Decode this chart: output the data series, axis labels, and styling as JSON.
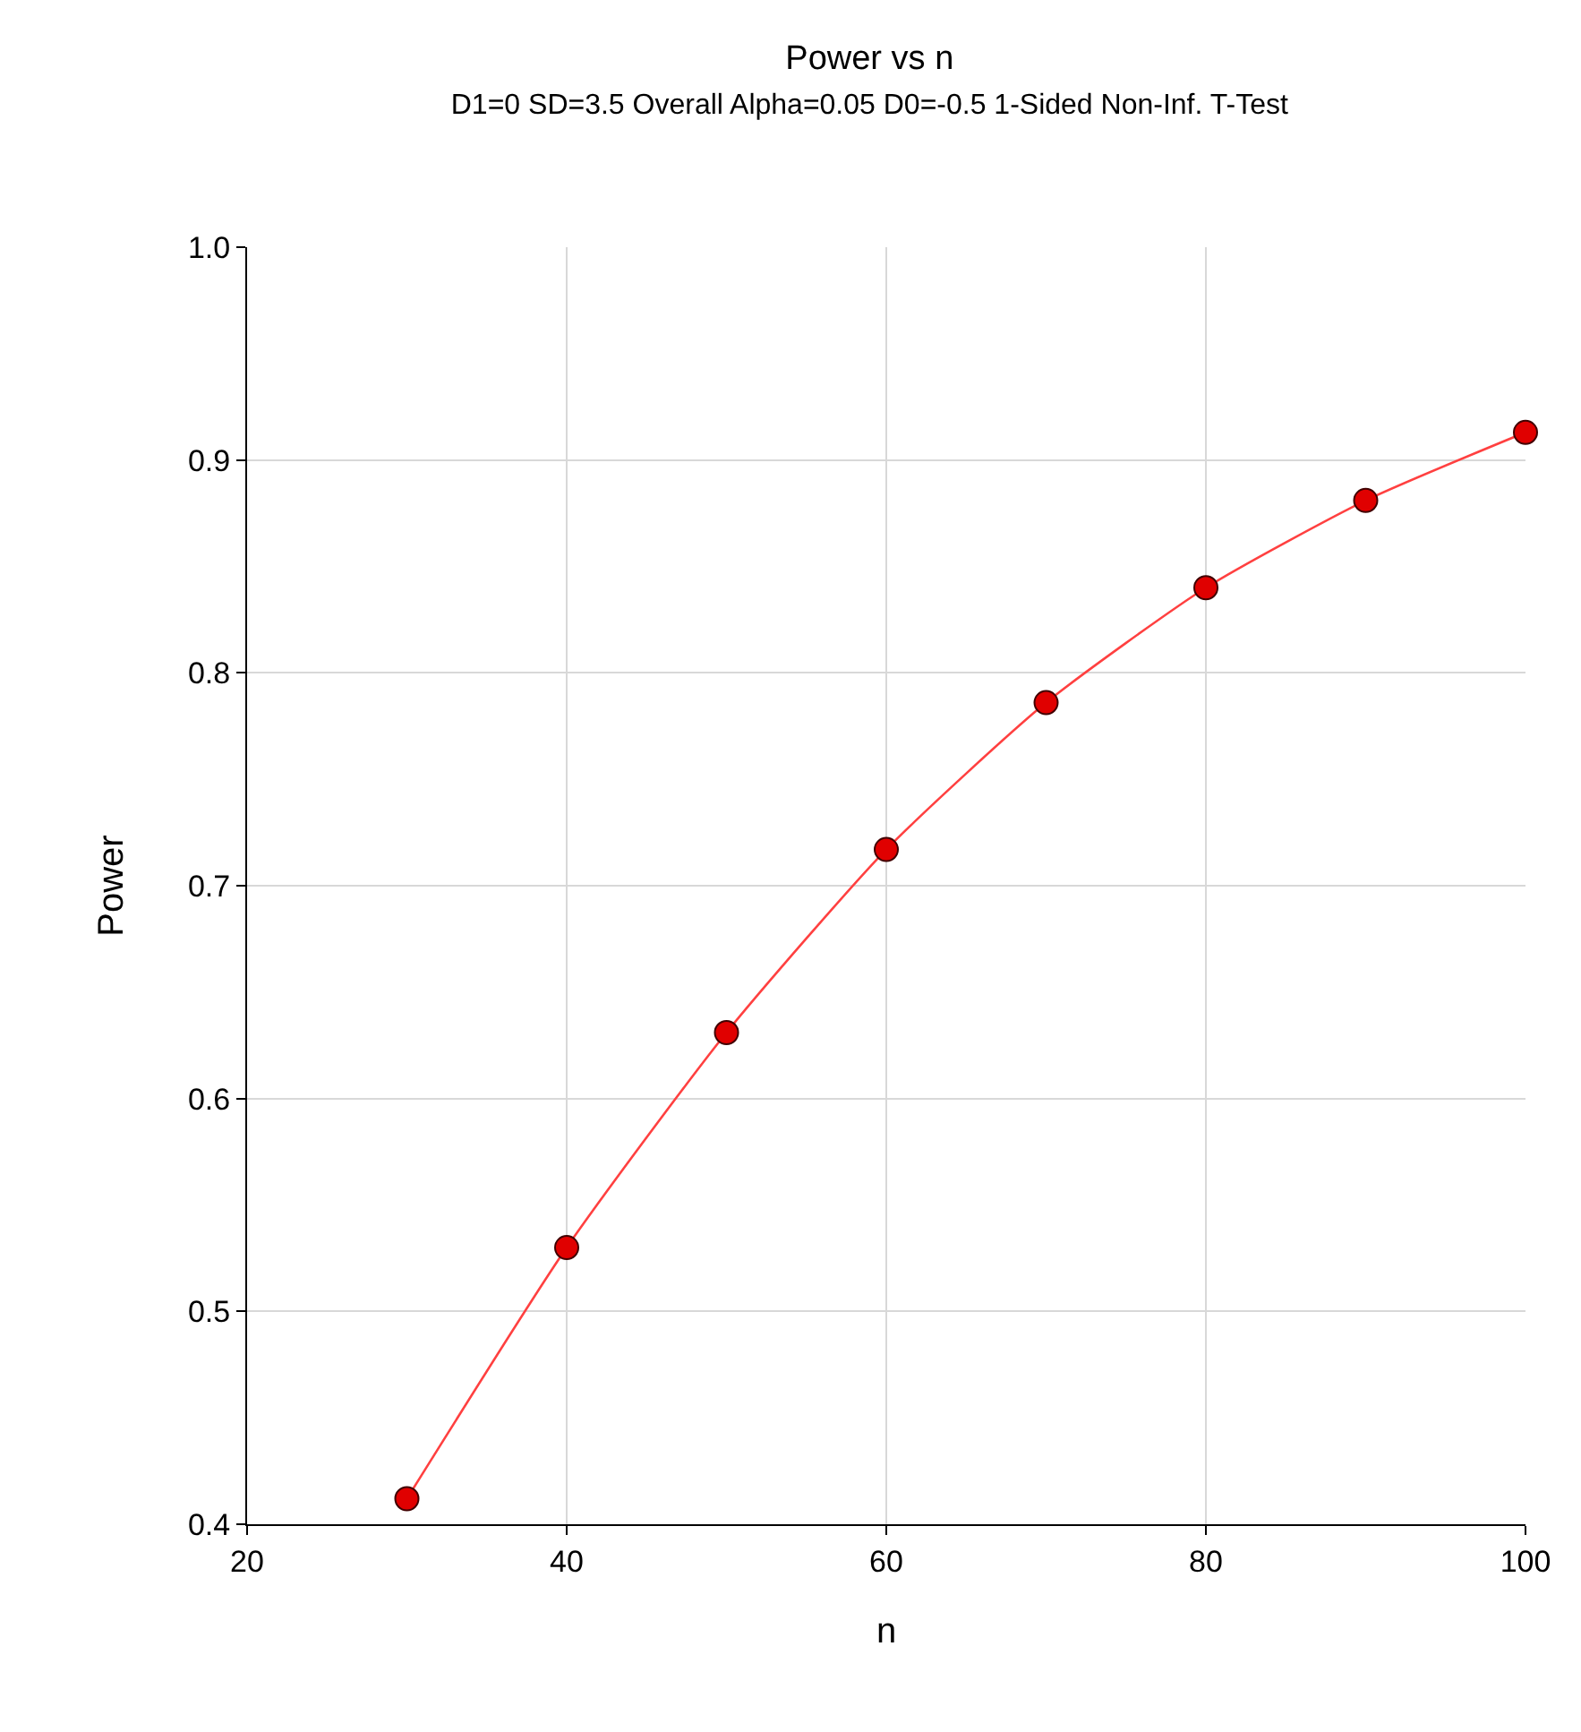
{
  "chart_data": {
    "type": "line",
    "title": "Power vs n",
    "subtitle": "D1=0 SD=3.5 Overall Alpha=0.05 D0=-0.5 1-Sided Non-Inf. T-Test",
    "xlabel": "n",
    "ylabel": "Power",
    "x": [
      30,
      40,
      50,
      60,
      70,
      80,
      90,
      100
    ],
    "series": [
      {
        "color": "#ff4040",
        "values": [
          0.412,
          0.53,
          0.631,
          0.717,
          0.786,
          0.84,
          0.881,
          0.913
        ]
      }
    ],
    "xlim": [
      20,
      100
    ],
    "xticks": [
      20,
      40,
      60,
      80,
      100
    ],
    "ylim": [
      0.4,
      1.0
    ],
    "yticks": [
      {
        "value": 0.4,
        "label": "0.4"
      },
      {
        "value": 0.5,
        "label": "0.5"
      },
      {
        "value": 0.6,
        "label": "0.6"
      },
      {
        "value": 0.7,
        "label": "0.7"
      },
      {
        "value": 0.8,
        "label": "0.8"
      },
      {
        "value": 0.9,
        "label": "0.9"
      },
      {
        "value": 1.0,
        "label": "1.0"
      }
    ],
    "grid": true,
    "marker": "circle",
    "line_style": "solid"
  }
}
